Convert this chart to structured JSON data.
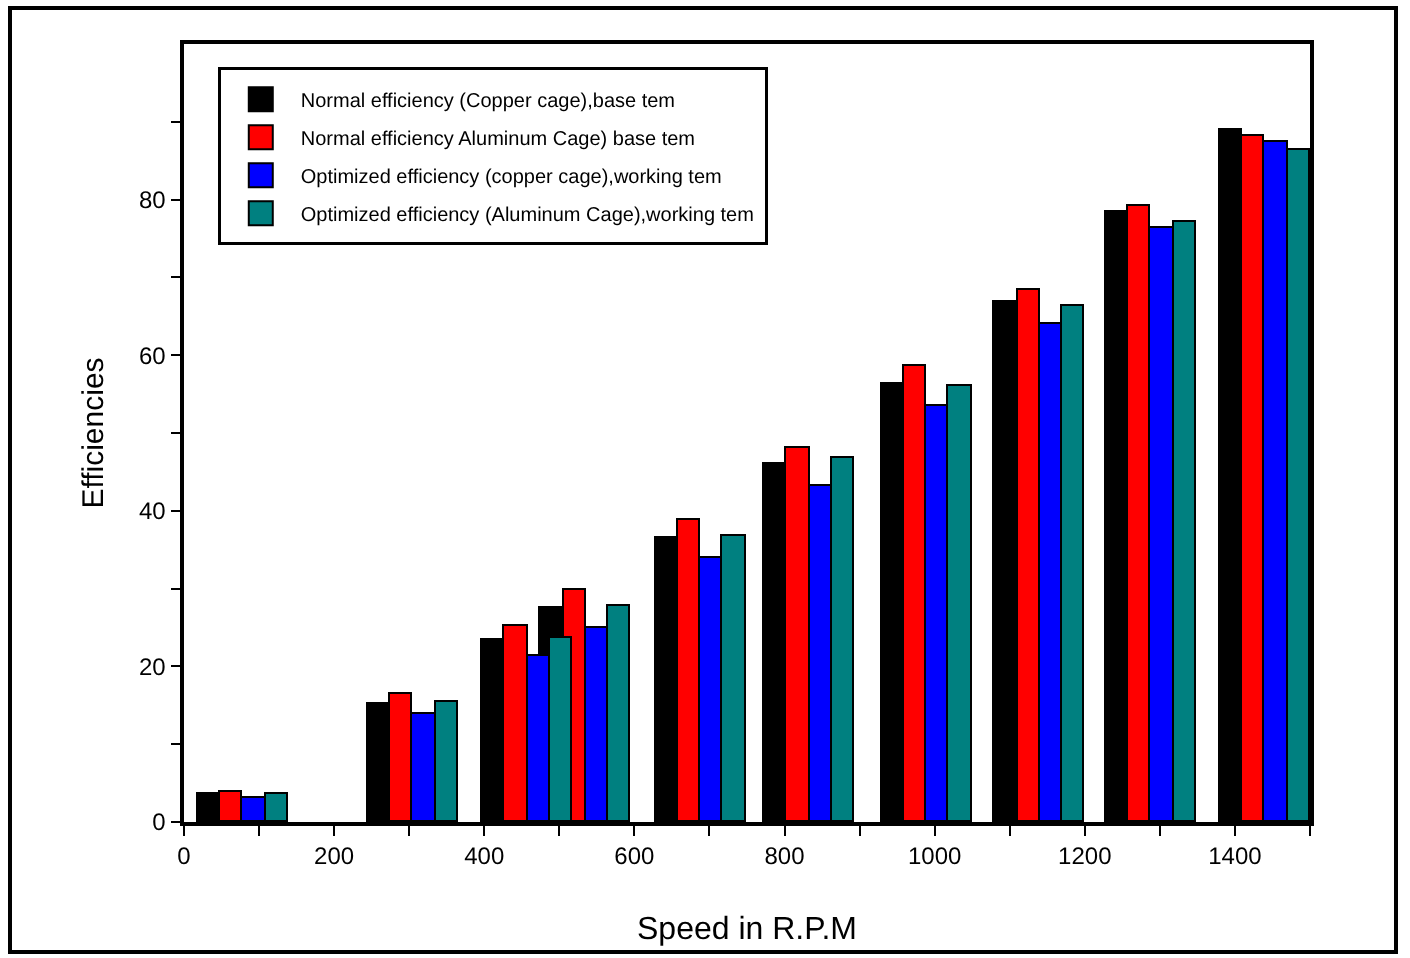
{
  "chart_data": {
    "type": "bar",
    "xlabel": "Speed in R.P.M",
    "ylabel": "Efficiencies",
    "xlim": [
      0,
      1500
    ],
    "ylim": [
      0,
      100
    ],
    "xticks": [
      0,
      {
        "value": 100,
        "label": null
      },
      200,
      {
        "value": 300,
        "label": null
      },
      400,
      {
        "value": 500,
        "label": null
      },
      600,
      {
        "value": 700,
        "label": null
      },
      800,
      {
        "value": 900,
        "label": null
      },
      1000,
      {
        "value": 1100,
        "label": null
      },
      1200,
      {
        "value": 1300,
        "label": null
      },
      1400,
      {
        "value": 1500,
        "label": null
      }
    ],
    "yticks": [
      0,
      {
        "value": 10,
        "label": null
      },
      20,
      {
        "value": 30,
        "label": null
      },
      40,
      {
        "value": 50,
        "label": null
      },
      60,
      {
        "value": 70,
        "label": null
      },
      80,
      {
        "value": 90,
        "label": null
      }
    ],
    "grid": false,
    "legend": "top left",
    "series": [
      {
        "name": "Normal efficiency (Copper cage),base tem",
        "color": "#000000",
        "x": [
          33,
          260,
          412,
          490,
          643,
          788,
          944,
          1095,
          1243,
          1395
        ],
        "values": [
          3.7,
          15.2,
          23.5,
          27.5,
          36.5,
          46.0,
          56.3,
          66.8,
          78.3,
          89.0
        ]
      },
      {
        "name": "Normal efficiency Aluminum Cage) base tem",
        "color": "#ff0000",
        "x": [
          63,
          290,
          442,
          520,
          673,
          818,
          974,
          1125,
          1273,
          1425
        ],
        "values": [
          3.9,
          16.4,
          25.1,
          29.7,
          38.8,
          48.2,
          58.6,
          68.3,
          79.2,
          88.2
        ]
      },
      {
        "name": "Optimized efficiency (copper cage),working tem",
        "color": "#0000ff",
        "x": [
          93,
          320,
          472,
          550,
          703,
          848,
          1004,
          1155,
          1303,
          1455
        ],
        "values": [
          3.2,
          13.9,
          21.4,
          25.0,
          34.0,
          43.3,
          53.4,
          64.0,
          76.4,
          87.3
        ]
      },
      {
        "name": "Optimized efficiency (Aluminum Cage),working tem",
        "color": "#008080",
        "x": [
          123,
          350,
          502,
          580,
          733,
          878,
          1034,
          1185,
          1333,
          1485
        ],
        "values": [
          3.6,
          15.5,
          23.7,
          27.7,
          36.7,
          46.7,
          56.1,
          66.3,
          77.2,
          86.3
        ]
      }
    ]
  }
}
